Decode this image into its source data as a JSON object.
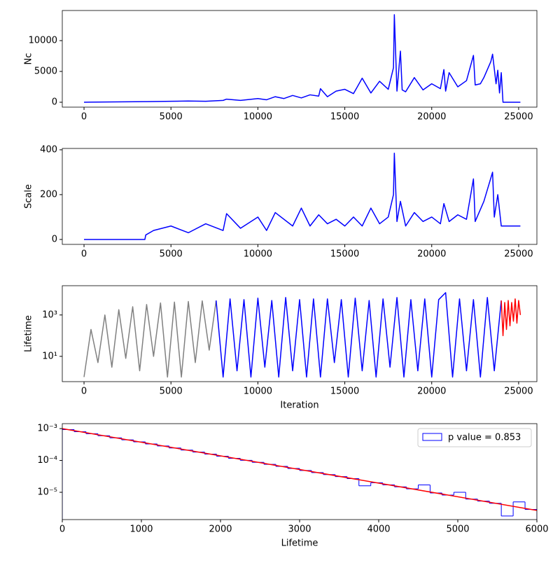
{
  "chart_data": [
    {
      "type": "line",
      "ylabel": "Nc",
      "xlim": [
        -1250,
        26050
      ],
      "xticks": [
        0,
        5000,
        10000,
        15000,
        20000,
        25000
      ],
      "ylim": [
        -795,
        14886
      ],
      "yticks": [
        0,
        5000,
        10000
      ],
      "series": [
        {
          "color": "blue",
          "x": [
            0,
            3500,
            3600,
            5000,
            6000,
            7000,
            8000,
            8200,
            9000,
            10000,
            10500,
            11000,
            11500,
            12000,
            12500,
            13000,
            13500,
            13600,
            14000,
            14500,
            15000,
            15500,
            16000,
            16500,
            17000,
            17500,
            17800,
            17850,
            18000,
            18200,
            18300,
            18500,
            19000,
            19500,
            20000,
            20500,
            20700,
            20800,
            21000,
            21500,
            22000,
            22400,
            22500,
            22800,
            23000,
            23400,
            23500,
            23700,
            23800,
            23900,
            24000,
            24100,
            25100
          ],
          "values": [
            0,
            100,
            100,
            150,
            200,
            150,
            300,
            500,
            300,
            600,
            400,
            900,
            600,
            1100,
            700,
            1200,
            1000,
            2200,
            900,
            1800,
            2100,
            1400,
            3900,
            1500,
            3400,
            2100,
            5600,
            14200,
            1800,
            8300,
            2000,
            1700,
            4000,
            2000,
            3000,
            2200,
            5300,
            1800,
            4800,
            2500,
            3500,
            7600,
            2800,
            3000,
            4000,
            6600,
            7800,
            3000,
            5200,
            1500,
            4800,
            0,
            0
          ]
        }
      ]
    },
    {
      "type": "line",
      "ylabel": "Scale",
      "xlim": [
        -1250,
        26050
      ],
      "xticks": [
        0,
        5000,
        10000,
        15000,
        20000,
        25000
      ],
      "ylim": [
        -22,
        406
      ],
      "yticks": [
        0,
        200,
        400
      ],
      "series": [
        {
          "color": "blue",
          "x": [
            0,
            3500,
            3550,
            4000,
            5000,
            6000,
            7000,
            8000,
            8200,
            9000,
            10000,
            10500,
            11000,
            12000,
            12500,
            13000,
            13500,
            14000,
            14500,
            15000,
            15500,
            16000,
            16500,
            17000,
            17500,
            17800,
            17850,
            18000,
            18200,
            18500,
            19000,
            19500,
            20000,
            20500,
            20700,
            21000,
            21500,
            22000,
            22400,
            22500,
            23000,
            23500,
            23600,
            23800,
            24000,
            24100,
            25100
          ],
          "values": [
            0,
            0,
            20,
            40,
            60,
            30,
            70,
            40,
            115,
            50,
            100,
            40,
            120,
            60,
            140,
            60,
            110,
            70,
            90,
            60,
            100,
            60,
            140,
            70,
            100,
            200,
            385,
            80,
            170,
            60,
            120,
            80,
            100,
            70,
            160,
            80,
            110,
            90,
            270,
            80,
            170,
            300,
            100,
            200,
            60,
            60,
            60
          ]
        }
      ]
    },
    {
      "type": "line",
      "ylabel": "Lifetime",
      "xlabel": "Iteration",
      "ylog": true,
      "xlim": [
        -1250,
        26050
      ],
      "xticks": [
        0,
        5000,
        10000,
        15000,
        20000,
        25000
      ],
      "ylim": [
        0.6,
        26000
      ],
      "yticks": [
        {
          "value": 10,
          "label": "10¹"
        },
        {
          "value": 1000,
          "label": "10³"
        }
      ],
      "series": [
        {
          "color": "gray",
          "x": [
            0,
            400,
            800,
            1200,
            1600,
            2000,
            2400,
            2800,
            3200,
            3600,
            4000,
            4400,
            4800,
            5200,
            5600,
            6000,
            6400,
            6800,
            7200,
            7600
          ],
          "values": [
            1,
            200,
            5,
            1000,
            3,
            1800,
            8,
            2500,
            2,
            3200,
            10,
            3800,
            1,
            4200,
            1,
            4500,
            5,
            4800,
            20,
            5000
          ]
        },
        {
          "color": "blue",
          "x": [
            7600,
            8000,
            8400,
            8800,
            9200,
            9600,
            10000,
            10400,
            10800,
            11200,
            11600,
            12000,
            12400,
            12800,
            13200,
            13600,
            14000,
            14400,
            14800,
            15200,
            15600,
            16000,
            16400,
            16800,
            17200,
            17600,
            18000,
            18400,
            18800,
            19200,
            19600,
            20000,
            20400,
            20800,
            21200,
            21600,
            22000,
            22400,
            22800,
            23200,
            23600,
            24000
          ],
          "values": [
            5000,
            1,
            6000,
            2,
            5500,
            1,
            6500,
            3,
            5000,
            1,
            7000,
            2,
            5500,
            1,
            6000,
            1,
            6000,
            5,
            5500,
            1,
            6500,
            2,
            5000,
            1,
            6000,
            3,
            7000,
            1,
            5500,
            2,
            6000,
            1,
            5500,
            12000,
            1,
            6000,
            2,
            5500,
            1,
            7000,
            2,
            5000
          ]
        },
        {
          "color": "red",
          "x": [
            24000,
            24100,
            24200,
            24300,
            24400,
            24500,
            24600,
            24700,
            24800,
            24900,
            25000,
            25100
          ],
          "values": [
            5000,
            100,
            4000,
            200,
            5000,
            300,
            4000,
            500,
            6000,
            400,
            5000,
            1000
          ]
        }
      ]
    },
    {
      "type": "histogram",
      "xlabel": "Lifetime",
      "ylog": true,
      "name": "p value = 0.853",
      "color": "blue",
      "legend": "upper right",
      "xlim": [
        0,
        6000
      ],
      "xticks": [
        0,
        1000,
        2000,
        3000,
        4000,
        5000,
        6000
      ],
      "ylim": [
        1.39e-06,
        0.00143
      ],
      "yticks": [
        {
          "value": 1e-05,
          "label": "10⁻⁵"
        },
        {
          "value": 0.0001,
          "label": "10⁻⁴"
        },
        {
          "value": 0.001,
          "label": "10⁻³"
        }
      ],
      "bins": [
        0,
        150,
        300,
        450,
        600,
        750,
        900,
        1050,
        1200,
        1350,
        1500,
        1650,
        1800,
        1950,
        2100,
        2250,
        2400,
        2550,
        2700,
        2850,
        3000,
        3150,
        3300,
        3450,
        3600,
        3750,
        3900,
        4050,
        4200,
        4350,
        4500,
        4650,
        4800,
        4950,
        5100,
        5250,
        5400,
        5550,
        5700,
        5850,
        6000
      ],
      "values": [
        0.00093,
        0.000801,
        0.000691,
        0.000596,
        0.000514,
        0.000444,
        0.000383,
        0.00033,
        0.000285,
        0.000246,
        0.000212,
        0.000183,
        0.000158,
        0.000136,
        0.000117,
        0.000101,
        8.74e-05,
        7.54e-05,
        6.5e-05,
        5.61e-05,
        4.84e-05,
        4.17e-05,
        3.6e-05,
        3.11e-05,
        2.68e-05,
        1.6e-05,
        1.99e-05,
        1.72e-05,
        1.48e-05,
        1.28e-05,
        1.7e-05,
        9.5e-06,
        8.2e-06,
        1e-05,
        6.1e-06,
        5.3e-06,
        4.5e-06,
        1.8e-06,
        5e-06,
        2.9e-06
      ],
      "fit": {
        "color": "red",
        "x": [
          0,
          6000
        ],
        "values": [
          0.001,
          2.7e-06
        ]
      }
    }
  ]
}
